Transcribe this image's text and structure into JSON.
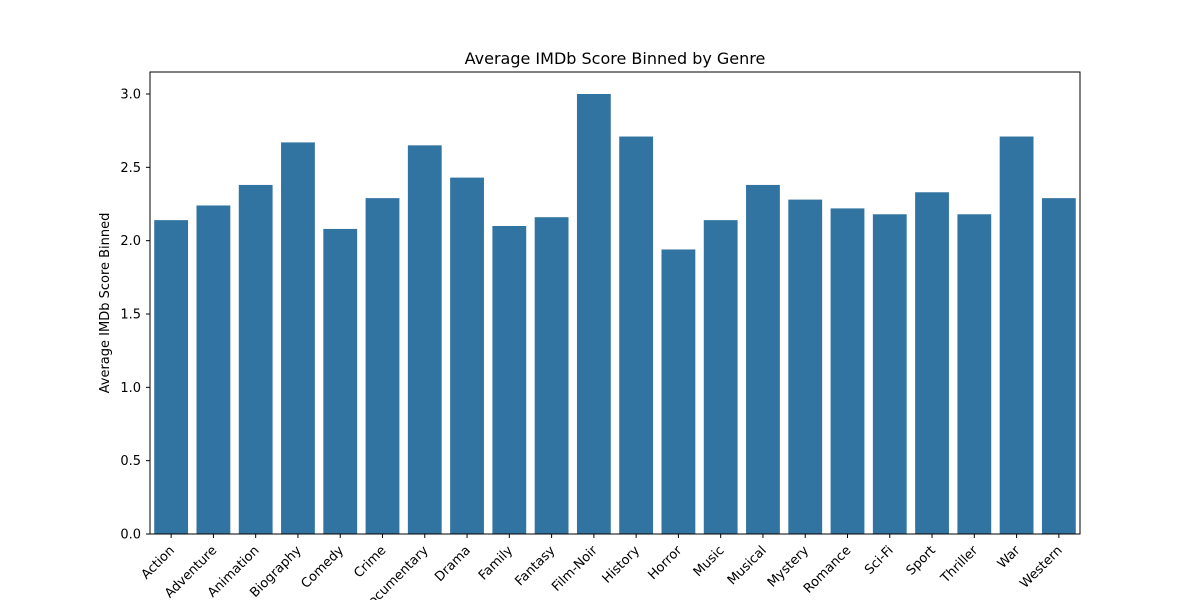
{
  "chart_data": {
    "type": "bar",
    "title": "Average IMDb Score Binned by Genre",
    "xlabel": "",
    "ylabel": "Average IMDb Score Binned",
    "categories": [
      "Action",
      "Adventure",
      "Animation",
      "Biography",
      "Comedy",
      "Crime",
      "Documentary",
      "Drama",
      "Family",
      "Fantasy",
      "Film-Noir",
      "History",
      "Horror",
      "Music",
      "Musical",
      "Mystery",
      "Romance",
      "Sci-Fi",
      "Sport",
      "Thriller",
      "War",
      "Western"
    ],
    "values": [
      2.14,
      2.24,
      2.38,
      2.67,
      2.08,
      2.29,
      2.65,
      2.43,
      2.1,
      2.16,
      3.0,
      2.71,
      1.94,
      2.14,
      2.38,
      2.28,
      2.22,
      2.18,
      2.33,
      2.18,
      2.71,
      2.29
    ],
    "ylim": [
      0,
      3.15
    ],
    "yticks": [
      "0.0",
      "0.5",
      "1.0",
      "1.5",
      "2.0",
      "2.5",
      "3.0"
    ],
    "bar_color": "#3274a1",
    "grid": false
  }
}
